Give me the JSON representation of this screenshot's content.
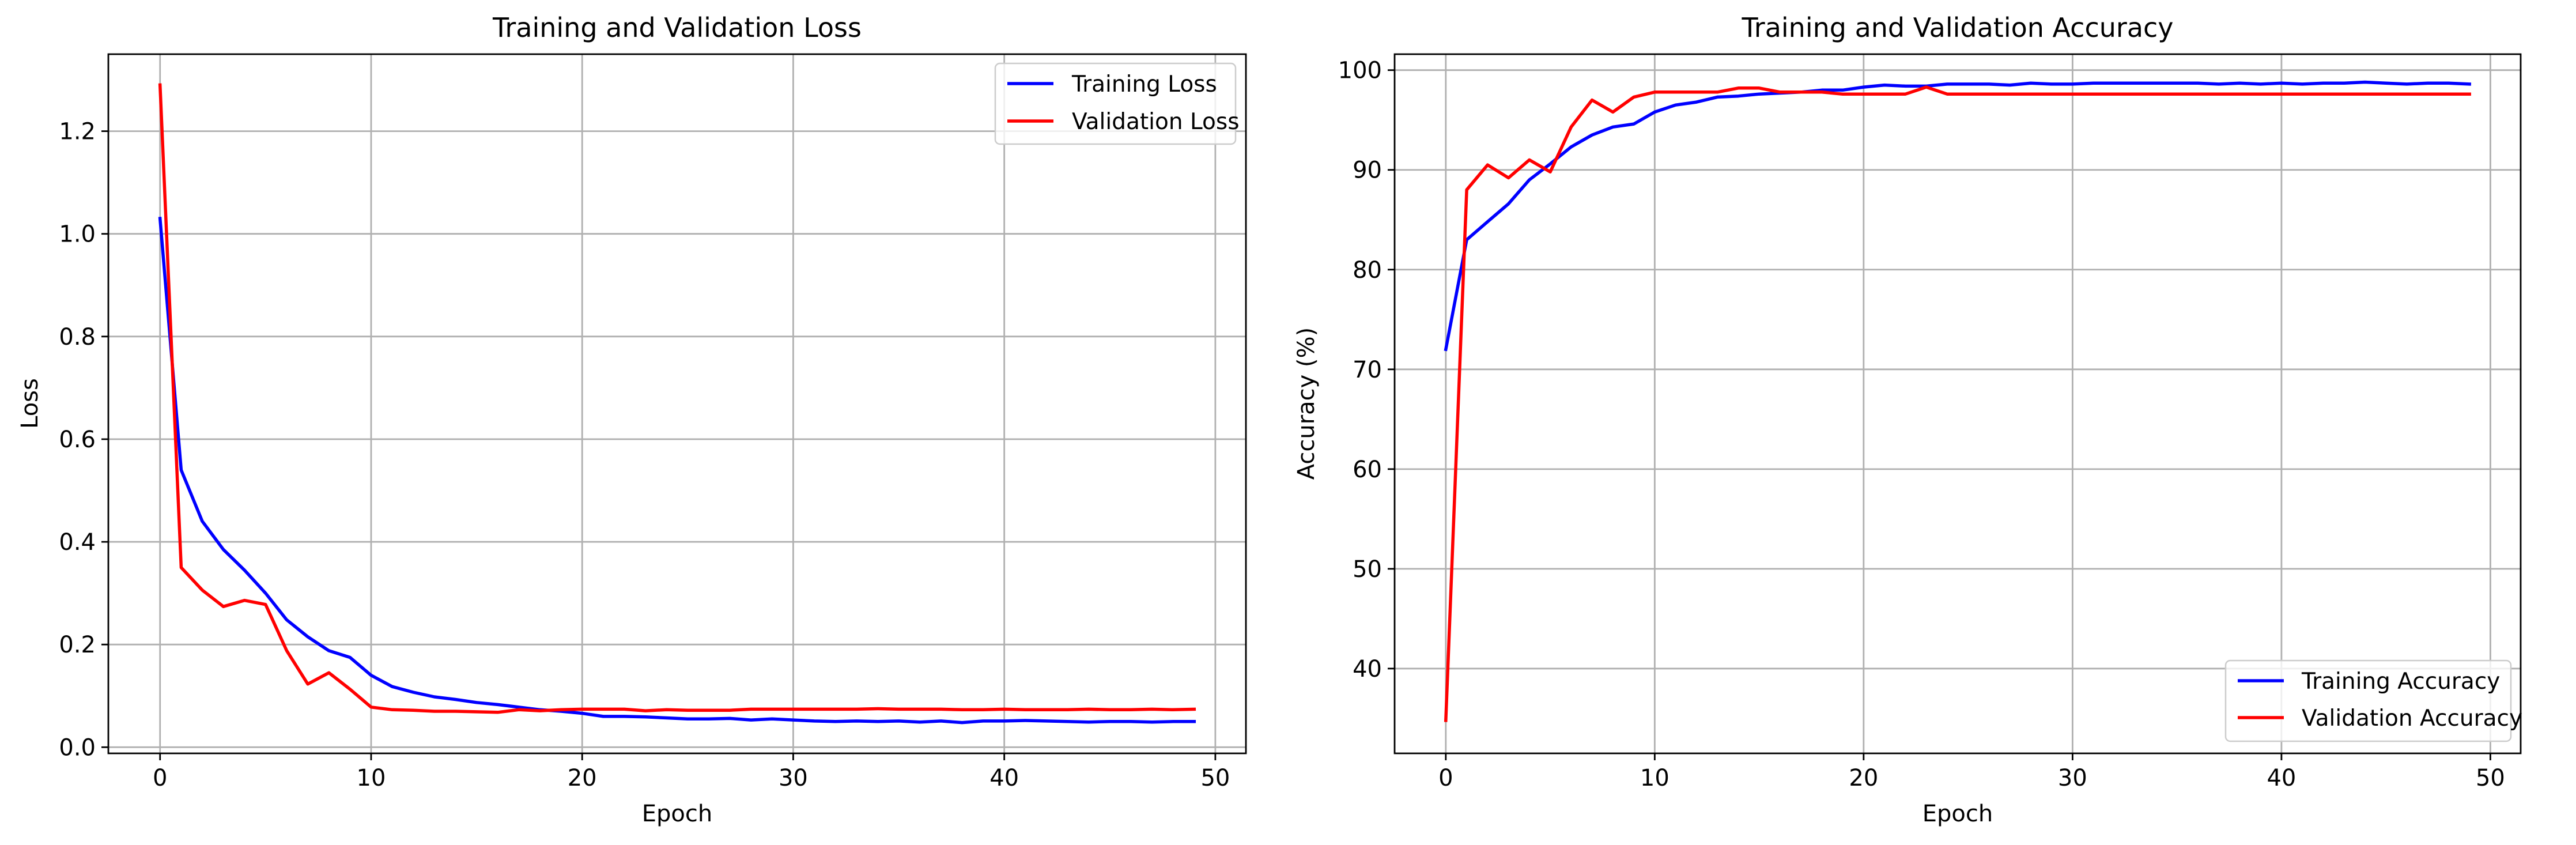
{
  "chart_data": [
    {
      "type": "line",
      "title": "Training and Validation Loss",
      "xlabel": "Epoch",
      "ylabel": "Loss",
      "xlim": [
        -2.45,
        51.45
      ],
      "ylim": [
        -0.012,
        1.35
      ],
      "xticks": [
        0,
        10,
        20,
        30,
        40,
        50
      ],
      "yticks": [
        0.0,
        0.2,
        0.4,
        0.6,
        0.8,
        1.0,
        1.2
      ],
      "ytick_labels": [
        "0.0",
        "0.2",
        "0.4",
        "0.6",
        "0.8",
        "1.0",
        "1.2"
      ],
      "grid": true,
      "legend_position": "upper right",
      "x": [
        0,
        1,
        2,
        3,
        4,
        5,
        6,
        7,
        8,
        9,
        10,
        11,
        12,
        13,
        14,
        15,
        16,
        17,
        18,
        19,
        20,
        21,
        22,
        23,
        24,
        25,
        26,
        27,
        28,
        29,
        30,
        31,
        32,
        33,
        34,
        35,
        36,
        37,
        38,
        39,
        40,
        41,
        42,
        43,
        44,
        45,
        46,
        47,
        48,
        49
      ],
      "series": [
        {
          "name": "Training Loss",
          "color": "#0000ff",
          "values": [
            1.03,
            0.54,
            0.44,
            0.385,
            0.345,
            0.3,
            0.248,
            0.215,
            0.188,
            0.175,
            0.14,
            0.118,
            0.107,
            0.098,
            0.093,
            0.087,
            0.083,
            0.078,
            0.073,
            0.07,
            0.066,
            0.06,
            0.06,
            0.059,
            0.057,
            0.055,
            0.055,
            0.056,
            0.053,
            0.055,
            0.053,
            0.051,
            0.05,
            0.051,
            0.05,
            0.051,
            0.049,
            0.051,
            0.048,
            0.051,
            0.051,
            0.052,
            0.051,
            0.05,
            0.049,
            0.05,
            0.05,
            0.049,
            0.05,
            0.05
          ]
        },
        {
          "name": "Validation Loss",
          "color": "#ff0000",
          "values": [
            1.29,
            0.35,
            0.306,
            0.274,
            0.286,
            0.278,
            0.188,
            0.123,
            0.145,
            0.113,
            0.078,
            0.073,
            0.072,
            0.07,
            0.07,
            0.069,
            0.068,
            0.073,
            0.071,
            0.073,
            0.074,
            0.074,
            0.074,
            0.071,
            0.073,
            0.072,
            0.072,
            0.072,
            0.074,
            0.074,
            0.074,
            0.074,
            0.074,
            0.074,
            0.075,
            0.074,
            0.074,
            0.074,
            0.073,
            0.073,
            0.074,
            0.073,
            0.073,
            0.073,
            0.074,
            0.073,
            0.073,
            0.074,
            0.073,
            0.074
          ]
        }
      ]
    },
    {
      "type": "line",
      "title": "Training and Validation Accuracy",
      "xlabel": "Epoch",
      "ylabel": "Accuracy (%)",
      "xlim": [
        -2.45,
        51.45
      ],
      "ylim": [
        31.5,
        101.6
      ],
      "xticks": [
        0,
        10,
        20,
        30,
        40,
        50
      ],
      "yticks": [
        40,
        50,
        60,
        70,
        80,
        90,
        100
      ],
      "ytick_labels": [
        "40",
        "50",
        "60",
        "70",
        "80",
        "90",
        "100"
      ],
      "grid": true,
      "legend_position": "lower right",
      "x": [
        0,
        1,
        2,
        3,
        4,
        5,
        6,
        7,
        8,
        9,
        10,
        11,
        12,
        13,
        14,
        15,
        16,
        17,
        18,
        19,
        20,
        21,
        22,
        23,
        24,
        25,
        26,
        27,
        28,
        29,
        30,
        31,
        32,
        33,
        34,
        35,
        36,
        37,
        38,
        39,
        40,
        41,
        42,
        43,
        44,
        45,
        46,
        47,
        48,
        49
      ],
      "series": [
        {
          "name": "Training Accuracy",
          "color": "#0000ff",
          "values": [
            72.0,
            83.0,
            84.8,
            86.6,
            89.0,
            90.6,
            92.3,
            93.5,
            94.3,
            94.6,
            95.8,
            96.5,
            96.8,
            97.3,
            97.4,
            97.6,
            97.7,
            97.8,
            98.0,
            98.0,
            98.3,
            98.5,
            98.4,
            98.4,
            98.6,
            98.6,
            98.6,
            98.5,
            98.7,
            98.6,
            98.6,
            98.7,
            98.7,
            98.7,
            98.7,
            98.7,
            98.7,
            98.6,
            98.7,
            98.6,
            98.7,
            98.6,
            98.7,
            98.7,
            98.8,
            98.7,
            98.6,
            98.7,
            98.7,
            98.6
          ]
        },
        {
          "name": "Validation Accuracy",
          "color": "#ff0000",
          "values": [
            34.8,
            88.0,
            90.5,
            89.2,
            91.0,
            89.8,
            94.3,
            97.0,
            95.8,
            97.3,
            97.8,
            97.8,
            97.8,
            97.8,
            98.2,
            98.2,
            97.8,
            97.8,
            97.8,
            97.6,
            97.6,
            97.6,
            97.6,
            98.3,
            97.6,
            97.6,
            97.6,
            97.6,
            97.6,
            97.6,
            97.6,
            97.6,
            97.6,
            97.6,
            97.6,
            97.6,
            97.6,
            97.6,
            97.6,
            97.6,
            97.6,
            97.6,
            97.6,
            97.6,
            97.6,
            97.6,
            97.6,
            97.6,
            97.6,
            97.6
          ]
        }
      ]
    }
  ]
}
